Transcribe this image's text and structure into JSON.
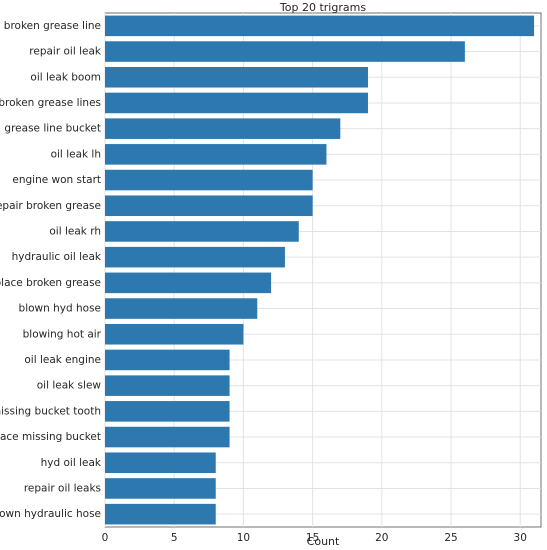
{
  "chart_data": {
    "type": "bar",
    "orientation": "horizontal",
    "title": "Top 20 trigrams",
    "xlabel": "Count",
    "ylabel": "",
    "xlim": [
      0,
      31.5
    ],
    "xticks": [
      0,
      5,
      10,
      15,
      20,
      25,
      30
    ],
    "grid": true,
    "bar_color": "#2e78b0",
    "categories": [
      "broken grease line",
      "repair oil leak",
      "oil leak boom",
      "broken grease lines",
      "grease line bucket",
      "oil leak lh",
      "engine won start",
      "repair broken grease",
      "oil leak rh",
      "hydraulic oil leak",
      "replace broken grease",
      "blown hyd hose",
      "blowing hot air",
      "oil leak engine",
      "oil leak slew",
      "missing bucket tooth",
      "replace missing bucket",
      "hyd oil leak",
      "repair oil leaks",
      "blown hydraulic hose"
    ],
    "values": [
      31,
      26,
      19,
      19,
      17,
      16,
      15,
      15,
      14,
      13,
      12,
      11,
      10,
      9,
      9,
      9,
      9,
      8,
      8,
      8
    ]
  }
}
